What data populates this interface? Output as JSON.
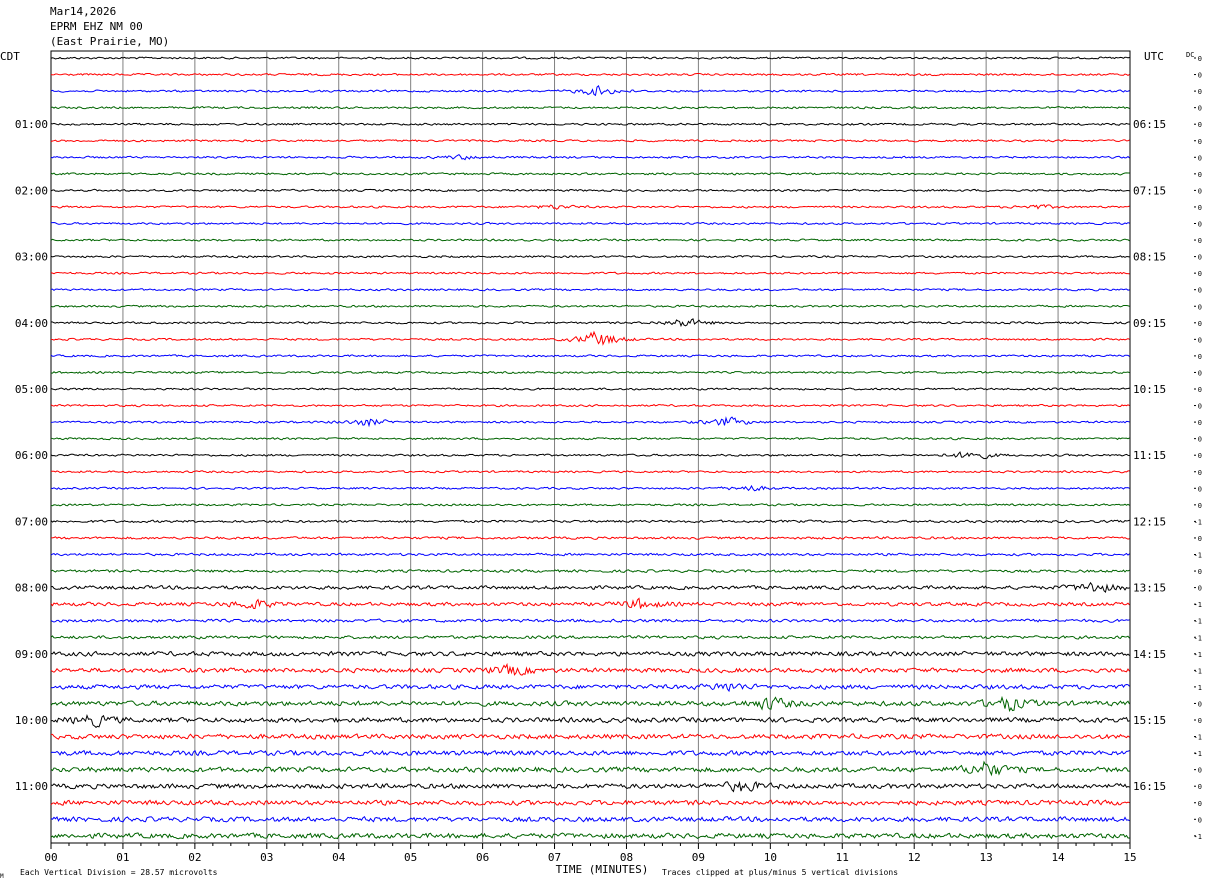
{
  "header": {
    "date": "Mar14,2026",
    "station": "EPRM EHZ NM 00",
    "location": "(East Prairie, MO)"
  },
  "chart_data": {
    "type": "line",
    "title": "EPRM EHZ NM 00",
    "left_timezone": "CDT",
    "right_timezone": "UTC",
    "dc_label": "DC",
    "xlabel": "TIME (MINUTES)",
    "x_ticks": [
      "00",
      "01",
      "02",
      "03",
      "04",
      "05",
      "06",
      "07",
      "08",
      "09",
      "10",
      "11",
      "12",
      "13",
      "14",
      "15"
    ],
    "xlim": [
      0,
      15
    ],
    "left_hour_labels": [
      "01:00",
      "02:00",
      "03:00",
      "04:00",
      "05:00",
      "06:00",
      "07:00",
      "08:00",
      "09:00",
      "10:00",
      "11:00"
    ],
    "right_hour_labels": [
      "06:15",
      "07:15",
      "08:15",
      "09:15",
      "10:15",
      "11:15",
      "12:15",
      "13:15",
      "14:15",
      "15:15",
      "16:15"
    ],
    "trace_colors": [
      "#000000",
      "#ff0000",
      "#0000ff",
      "#006400"
    ],
    "dc_offsets": [
      "0",
      "0",
      "0",
      "0",
      "0",
      "0",
      "0",
      "0",
      "0",
      "0",
      "0",
      "0",
      "0",
      "0",
      "0",
      "0",
      "0",
      "0",
      "0",
      "0",
      "0",
      "0",
      "0",
      "0",
      "0",
      "0",
      "0",
      "0",
      "-1",
      "0",
      "-1",
      "0",
      "0",
      "-1",
      "-1",
      "-1",
      "-1",
      "-1",
      "1",
      "0",
      "0",
      "-1",
      "-1",
      "0",
      "0",
      "0",
      "0",
      "-1"
    ],
    "trace_amplitude": [
      1,
      1,
      1,
      1,
      1,
      1,
      1,
      1,
      1,
      1,
      1,
      1,
      1,
      1,
      1,
      1,
      1,
      1,
      1,
      1,
      1,
      1,
      1,
      1,
      1,
      1,
      1,
      1,
      1.2,
      1.2,
      1.2,
      1.3,
      1.8,
      1.8,
      1.5,
      1.5,
      2.2,
      2.2,
      2.2,
      2.4,
      2.4,
      2.4,
      2.4,
      2.5,
      2.4,
      2.4,
      2.4,
      2.5
    ],
    "events": [
      {
        "trace": 2,
        "minute": 7.6,
        "amplitude": 5
      },
      {
        "trace": 6,
        "minute": 5.7,
        "amplitude": 2
      },
      {
        "trace": 9,
        "minute": 7.0,
        "amplitude": 2
      },
      {
        "trace": 9,
        "minute": 13.7,
        "amplitude": 2
      },
      {
        "trace": 16,
        "minute": 8.8,
        "amplitude": 5
      },
      {
        "trace": 17,
        "minute": 7.6,
        "amplitude": 9
      },
      {
        "trace": 22,
        "minute": 4.4,
        "amplitude": 4
      },
      {
        "trace": 22,
        "minute": 9.4,
        "amplitude": 5
      },
      {
        "trace": 24,
        "minute": 12.8,
        "amplitude": 5
      },
      {
        "trace": 26,
        "minute": 9.7,
        "amplitude": 3
      },
      {
        "trace": 32,
        "minute": 14.5,
        "amplitude": 6
      },
      {
        "trace": 33,
        "minute": 2.8,
        "amplitude": 5
      },
      {
        "trace": 33,
        "minute": 8.2,
        "amplitude": 5
      },
      {
        "trace": 37,
        "minute": 6.4,
        "amplitude": 5
      },
      {
        "trace": 38,
        "minute": 9.4,
        "amplitude": 4
      },
      {
        "trace": 39,
        "minute": 13.3,
        "amplitude": 7
      },
      {
        "trace": 39,
        "minute": 10.0,
        "amplitude": 6
      },
      {
        "trace": 40,
        "minute": 0.6,
        "amplitude": 5
      },
      {
        "trace": 43,
        "minute": 13.0,
        "amplitude": 8
      },
      {
        "trace": 44,
        "minute": 9.6,
        "amplitude": 5
      }
    ]
  },
  "footer": {
    "scale_text": "Each Vertical Division =   28.57 microvolts",
    "clip_text": "Traces clipped at plus/minus 5 vertical divisions",
    "corner_mark": "M"
  }
}
